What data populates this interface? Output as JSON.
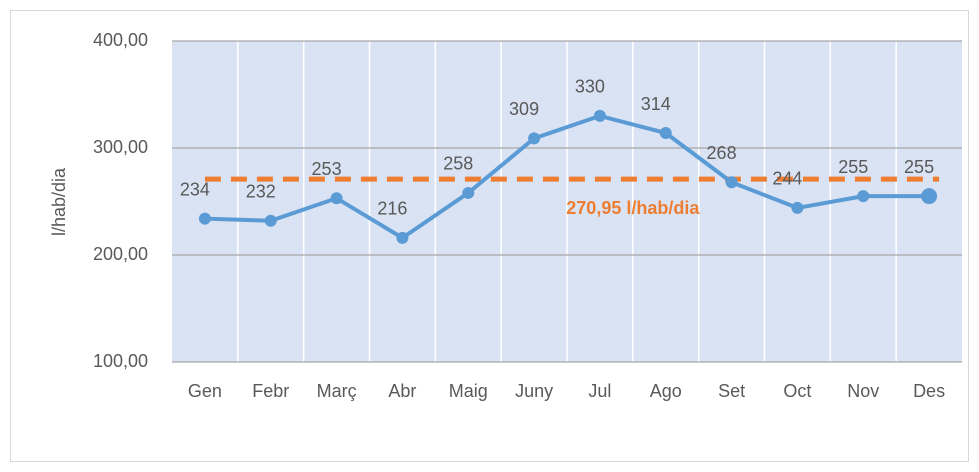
{
  "chart_data": {
    "type": "line",
    "ylabel": "l/hab/dia",
    "categories": [
      "Gen",
      "Febr",
      "Març",
      "Abr",
      "Maig",
      "Juny",
      "Jul",
      "Ago",
      "Set",
      "Oct",
      "Nov",
      "Des"
    ],
    "series": [
      {
        "name": "l/hab/dia",
        "color": "#5b9bd5",
        "values": [
          234,
          232,
          253,
          216,
          258,
          309,
          330,
          314,
          268,
          244,
          255,
          255
        ]
      }
    ],
    "reference": {
      "value": 270.95,
      "label": "270,95 l/hab/dia",
      "color": "#ed7d31"
    },
    "ylim": [
      100,
      400
    ],
    "yticks": [
      {
        "value": 100,
        "label": "100,00"
      },
      {
        "value": 200,
        "label": "200,00"
      },
      {
        "value": 300,
        "label": "300,00"
      },
      {
        "value": 400,
        "label": "400,00"
      }
    ],
    "grid": true
  }
}
